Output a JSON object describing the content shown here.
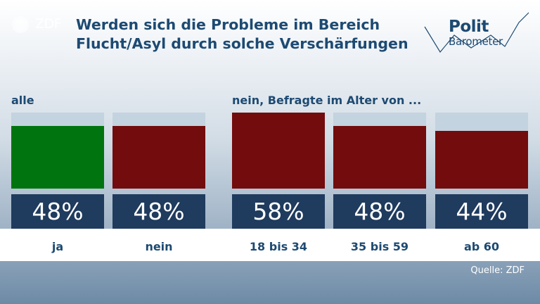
{
  "header": {
    "logo_text": "ZDF",
    "title_line1": "Werden sich die Probleme im Bereich",
    "title_line2": "Flucht/Asyl durch solche Verschärfungen",
    "brand_line1": "Polit",
    "brand_line2": "Barometer"
  },
  "sections": {
    "left_label": "alle",
    "right_label": "nein, Befragte im Alter von ..."
  },
  "source": "Quelle: ZDF",
  "colors": {
    "green": "#00750f",
    "red": "#730c0d",
    "track": "#c3d3df",
    "value_box": "#1f3b5e"
  },
  "chart_data": {
    "type": "bar",
    "unit": "%",
    "ylim": [
      0,
      58
    ],
    "categories": [
      "ja",
      "nein",
      "18 bis 34",
      "35 bis 59",
      "ab 60"
    ],
    "values": [
      48,
      48,
      58,
      48,
      44
    ],
    "value_labels": [
      "48%",
      "48%",
      "58%",
      "48%",
      "44%"
    ],
    "bar_colors": [
      "green",
      "red",
      "red",
      "red",
      "red"
    ]
  }
}
